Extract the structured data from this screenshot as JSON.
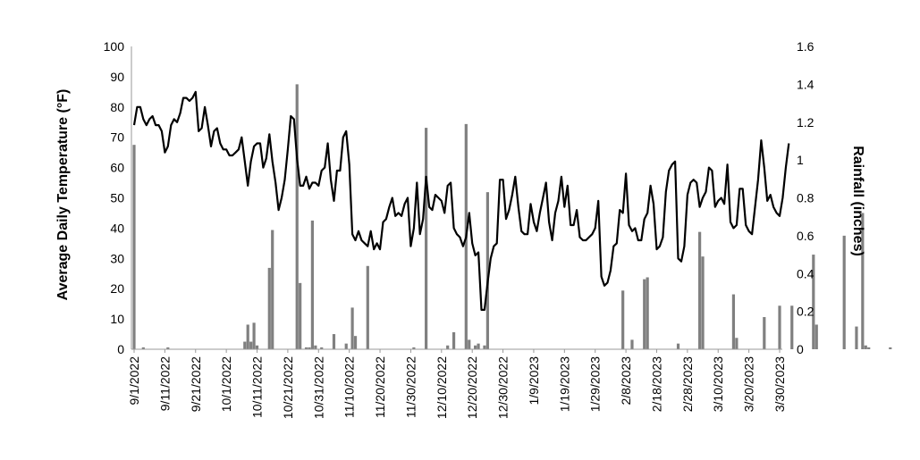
{
  "chart_data": {
    "type": "bar+line",
    "ylabel": "Average Daily Temperature (°F)",
    "y2label": "Rainfall (inches)",
    "ylim": [
      0,
      100
    ],
    "y2lim": [
      0,
      1.6
    ],
    "yticks": [
      0,
      10,
      20,
      30,
      40,
      50,
      60,
      70,
      80,
      90,
      100
    ],
    "y2ticks": [
      "0",
      "0.2",
      "0.4",
      "0.6",
      "0.8",
      "1",
      "1.2",
      "1.4",
      "1.6"
    ],
    "xticks": [
      "9/1/2022",
      "9/11/2022",
      "9/21/2022",
      "10/1/2022",
      "10/11/2022",
      "10/21/2022",
      "10/31/2022",
      "11/10/2022",
      "11/20/2022",
      "11/30/2022",
      "12/10/2022",
      "12/20/2022",
      "12/30/2022",
      "1/9/2023",
      "1/19/2023",
      "1/29/2023",
      "2/8/2023",
      "2/18/2023",
      "2/28/2023",
      "3/10/2023",
      "3/20/2023",
      "3/30/2023"
    ],
    "x_start": "9/1/2022",
    "x_end": "3/30/2023",
    "grid": false,
    "series": [
      {
        "name": "",
        "kind": "line",
        "axis": "left",
        "color": "#000000",
        "values": [
          74,
          80,
          80,
          76,
          74,
          76,
          77,
          74,
          74,
          72,
          65,
          67,
          74,
          76,
          75,
          78,
          83,
          83,
          82,
          83,
          85,
          72,
          73,
          80,
          74,
          67,
          72,
          73,
          68,
          66,
          66,
          64,
          64,
          65,
          66,
          70,
          62,
          54,
          62,
          67,
          68,
          68,
          60,
          63,
          71,
          62,
          55,
          46,
          50,
          56,
          66,
          77,
          76,
          63,
          54,
          54,
          57,
          53,
          55,
          55,
          54,
          59,
          60,
          68,
          56,
          49,
          59,
          59,
          70,
          72,
          61,
          38,
          36,
          39,
          36,
          35,
          34,
          39,
          33,
          35,
          33,
          42,
          43,
          47,
          50,
          44,
          45,
          44,
          48,
          50,
          34,
          40,
          55,
          38,
          43,
          57,
          47,
          46,
          51,
          50,
          49,
          45,
          54,
          55,
          40,
          38,
          37,
          34,
          37,
          45,
          35,
          31,
          32,
          13,
          13,
          22,
          30,
          34,
          35,
          56,
          56,
          43,
          46,
          51,
          57,
          47,
          39,
          38,
          38,
          48,
          42,
          39,
          45,
          50,
          55,
          42,
          36,
          45,
          49,
          57,
          47,
          54,
          41,
          41,
          46,
          37,
          36,
          36,
          37,
          38,
          40,
          49,
          24,
          21,
          22,
          26,
          34,
          35,
          46,
          45,
          58,
          41,
          39,
          40,
          36,
          36,
          43,
          45,
          54,
          48,
          33,
          34,
          37,
          52,
          59,
          61,
          62,
          30,
          29,
          34,
          51,
          55,
          56,
          55,
          47,
          50,
          52,
          60,
          59,
          47,
          49,
          50,
          48,
          61,
          42,
          40,
          41,
          53,
          53,
          41,
          39,
          38,
          47,
          56,
          69,
          60,
          49,
          51,
          47,
          45,
          44,
          50,
          60,
          68
        ]
      },
      {
        "name": "",
        "kind": "bar",
        "axis": "right",
        "color": "#808080",
        "values": [
          1.08,
          0,
          0,
          0.01,
          0,
          0,
          0,
          0,
          0,
          0,
          0,
          0.01,
          0,
          0,
          0,
          0,
          0,
          0,
          0,
          0,
          0,
          0,
          0,
          0,
          0,
          0,
          0,
          0,
          0,
          0,
          0,
          0,
          0,
          0,
          0,
          0,
          0.04,
          0.13,
          0.04,
          0.14,
          0.02,
          0,
          0,
          0,
          0.43,
          0.63,
          0,
          0,
          0,
          0,
          0,
          0,
          0,
          1.4,
          0.35,
          0,
          0.01,
          0.01,
          0.68,
          0.02,
          0,
          0.01,
          0,
          0,
          0,
          0.08,
          0,
          0,
          0,
          0.03,
          0,
          0.22,
          0.07,
          0,
          0,
          0,
          0.44,
          0,
          0,
          0,
          0,
          0,
          0,
          0,
          0,
          0,
          0,
          0,
          0,
          0,
          0,
          0.01,
          0,
          0,
          0,
          1.17,
          0,
          0,
          0,
          0,
          0,
          0,
          0.02,
          0,
          0.09,
          0,
          0,
          0,
          1.19,
          0.05,
          0,
          0.02,
          0.03,
          0,
          0.02,
          0.83,
          0,
          0,
          0,
          0,
          0,
          0,
          0,
          0,
          0,
          0,
          0,
          0,
          0,
          0,
          0,
          0,
          0,
          0,
          0,
          0,
          0,
          0,
          0,
          0,
          0,
          0,
          0,
          0,
          0,
          0,
          0,
          0,
          0,
          0,
          0,
          0,
          0,
          0,
          0,
          0,
          0,
          0,
          0,
          0.31,
          0,
          0,
          0.05,
          0,
          0,
          0,
          0.37,
          0.38,
          0,
          0,
          0,
          0,
          0,
          0,
          0,
          0,
          0,
          0.03,
          0,
          0,
          0,
          0,
          0,
          0,
          0.62,
          0.49,
          0,
          0,
          0,
          0,
          0,
          0,
          0,
          0,
          0,
          0.29,
          0.06,
          0,
          0,
          0,
          0,
          0,
          0,
          0,
          0,
          0.17,
          0,
          0,
          0,
          0,
          0.23,
          0,
          0,
          0,
          0.23,
          0,
          0,
          0,
          0,
          0,
          0,
          0.5,
          0.13,
          0,
          0,
          0,
          0,
          0,
          0,
          0,
          0,
          0.6,
          0,
          0,
          0,
          0.12,
          0,
          0.72,
          0.02,
          0.01,
          0,
          0,
          0,
          0,
          0,
          0,
          0.01
        ]
      }
    ]
  }
}
